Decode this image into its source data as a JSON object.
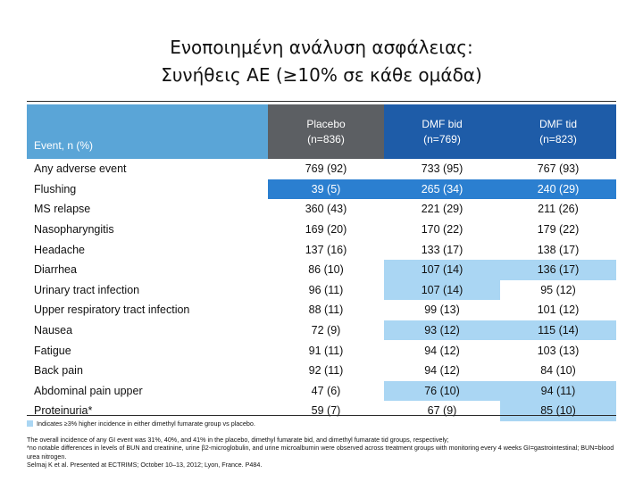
{
  "title": {
    "line1": "Ενοποιημένη ανάλυση ασφάλειας:",
    "line2": "Συνήθεις AE  (≥10% σε κάθε ομάδα)"
  },
  "table": {
    "headers": {
      "event": "Event, n (%)",
      "placebo": [
        "Placebo",
        "(n=836)"
      ],
      "dmf_bid": [
        "DMF bid",
        "(n=769)"
      ],
      "dmf_tid": [
        "DMF tid",
        "(n=823)"
      ]
    },
    "rows": [
      {
        "event": "Any adverse event",
        "placebo": "769 (92)",
        "bid": "733 (95)",
        "tid": "767 (93)",
        "hl_bid": "",
        "hl_tid": ""
      },
      {
        "event": "Flushing",
        "placebo": "39 (5)",
        "bid": "265 (34)",
        "tid": "240 (29)",
        "hl_bid": "strong",
        "hl_tid": "strong",
        "hl_placebo": "strong"
      },
      {
        "event": "MS relapse",
        "placebo": "360 (43)",
        "bid": "221 (29)",
        "tid": "211 (26)",
        "hl_bid": "",
        "hl_tid": ""
      },
      {
        "event": "Nasopharyngitis",
        "placebo": "169 (20)",
        "bid": "170 (22)",
        "tid": "179 (22)",
        "hl_bid": "",
        "hl_tid": ""
      },
      {
        "event": "Headache",
        "placebo": "137 (16)",
        "bid": "133 (17)",
        "tid": "138 (17)",
        "hl_bid": "",
        "hl_tid": ""
      },
      {
        "event": "Diarrhea",
        "placebo": "86 (10)",
        "bid": "107 (14)",
        "tid": "136 (17)",
        "hl_bid": "light",
        "hl_tid": "light"
      },
      {
        "event": "Urinary tract infection",
        "placebo": "96 (11)",
        "bid": "107 (14)",
        "tid": "95 (12)",
        "hl_bid": "light",
        "hl_tid": ""
      },
      {
        "event": "Upper respiratory tract infection",
        "placebo": "88 (11)",
        "bid": "99 (13)",
        "tid": "101 (12)",
        "hl_bid": "",
        "hl_tid": ""
      },
      {
        "event": "Nausea",
        "placebo": "72 (9)",
        "bid": "93 (12)",
        "tid": "115 (14)",
        "hl_bid": "light",
        "hl_tid": "light"
      },
      {
        "event": "Fatigue",
        "placebo": "91 (11)",
        "bid": "94 (12)",
        "tid": "103 (13)",
        "hl_bid": "",
        "hl_tid": ""
      },
      {
        "event": "Back pain",
        "placebo": "92 (11)",
        "bid": "94 (12)",
        "tid": "84 (10)",
        "hl_bid": "",
        "hl_tid": ""
      },
      {
        "event": "Abdominal pain upper",
        "placebo": "47 (6)",
        "bid": "76 (10)",
        "tid": "94 (11)",
        "hl_bid": "light",
        "hl_tid": "light"
      },
      {
        "event": "Proteinuria*",
        "placebo": "59 (7)",
        "bid": "67 (9)",
        "tid": "85 (10)",
        "hl_bid": "",
        "hl_tid": "light"
      }
    ]
  },
  "footnotes": {
    "legend": "Indicates ≥3% higher incidence in either dimethyl fumarate group vs placebo.",
    "note1": "The overall incidence of any GI event was 31%, 40%, and 41% in the placebo, dimethyl fumarate bid, and dimethyl fumarate tid groups, respectively;",
    "note2": "*no notable differences in levels of BUN and creatinine, urine β2-microglobulin, and urine microalbumin were observed across treatment groups with monitoring every 4 weeks GI=gastrointestinal; BUN=blood urea nitrogen.",
    "note3": "Selmaj K et al. Presented at ECTRIMS; October 10–13, 2012; Lyon, France. P484."
  },
  "colors": {
    "header_event": "#5aa5d7",
    "header_placebo": "#5c5f63",
    "header_dmf": "#1e5ca8",
    "highlight_light": "#aad6f3",
    "highlight_strong": "#2b7fd0"
  }
}
